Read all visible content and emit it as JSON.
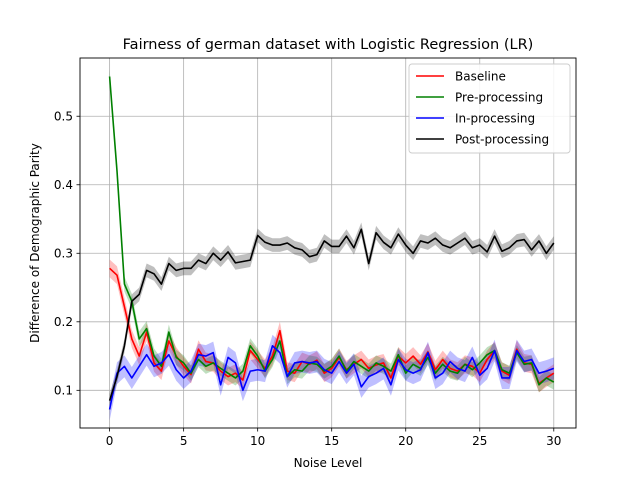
{
  "chart_data": {
    "type": "line",
    "title": "Fairness of german dataset with Logistic Regression (LR)",
    "xlabel": "Noise Level",
    "ylabel": "Difference of Demographic Parity",
    "xlim": [
      -2.0,
      31.5
    ],
    "ylim": [
      0.045,
      0.585
    ],
    "xticks": [
      0,
      5,
      10,
      15,
      20,
      25,
      30
    ],
    "yticks": [
      0.1,
      0.2,
      0.3,
      0.4,
      0.5
    ],
    "xtick_labels": [
      "0",
      "5",
      "10",
      "15",
      "20",
      "25",
      "30"
    ],
    "ytick_labels": [
      "0.1",
      "0.2",
      "0.3",
      "0.4",
      "0.5"
    ],
    "grid": true,
    "legend_position": "top-right",
    "x": [
      0,
      0.5,
      1,
      1.5,
      2,
      2.5,
      3,
      3.5,
      4,
      4.5,
      5,
      5.5,
      6,
      6.5,
      7,
      7.5,
      8,
      8.5,
      9,
      9.5,
      10,
      10.5,
      11,
      11.5,
      12,
      12.5,
      13,
      13.5,
      14,
      14.5,
      15,
      15.5,
      16,
      16.5,
      17,
      17.5,
      18,
      18.5,
      19,
      19.5,
      20,
      20.5,
      21,
      21.5,
      22,
      22.5,
      23,
      23.5,
      24,
      24.5,
      25,
      25.5,
      26,
      26.5,
      27,
      27.5,
      28,
      28.5,
      29,
      29.5,
      30
    ],
    "series": [
      {
        "name": "Baseline",
        "color": "#ff0000",
        "band": 0.013,
        "values": [
          0.278,
          0.268,
          0.222,
          0.175,
          0.15,
          0.185,
          0.14,
          0.128,
          0.172,
          0.15,
          0.135,
          0.123,
          0.16,
          0.142,
          0.14,
          0.128,
          0.12,
          0.125,
          0.115,
          0.158,
          0.145,
          0.132,
          0.15,
          0.187,
          0.128,
          0.125,
          0.142,
          0.138,
          0.144,
          0.125,
          0.132,
          0.148,
          0.13,
          0.138,
          0.145,
          0.132,
          0.137,
          0.14,
          0.118,
          0.15,
          0.14,
          0.15,
          0.138,
          0.156,
          0.13,
          0.145,
          0.132,
          0.128,
          0.138,
          0.135,
          0.125,
          0.145,
          0.158,
          0.128,
          0.122,
          0.16,
          0.14,
          0.138,
          0.11,
          0.118,
          0.125
        ]
      },
      {
        "name": "Pre-processing",
        "color": "#008000",
        "band": 0.011,
        "values": [
          0.558,
          0.42,
          0.255,
          0.23,
          0.175,
          0.19,
          0.15,
          0.135,
          0.185,
          0.148,
          0.14,
          0.125,
          0.145,
          0.135,
          0.14,
          0.132,
          0.125,
          0.118,
          0.128,
          0.165,
          0.15,
          0.128,
          0.145,
          0.172,
          0.12,
          0.13,
          0.128,
          0.14,
          0.138,
          0.128,
          0.135,
          0.15,
          0.128,
          0.142,
          0.135,
          0.128,
          0.14,
          0.135,
          0.128,
          0.152,
          0.125,
          0.138,
          0.132,
          0.148,
          0.125,
          0.138,
          0.128,
          0.125,
          0.138,
          0.13,
          0.14,
          0.152,
          0.158,
          0.13,
          0.125,
          0.155,
          0.138,
          0.14,
          0.108,
          0.118,
          0.112
        ]
      },
      {
        "name": "In-processing",
        "color": "#0000ff",
        "band": 0.016,
        "values": [
          0.072,
          0.125,
          0.135,
          0.118,
          0.135,
          0.152,
          0.135,
          0.14,
          0.152,
          0.13,
          0.118,
          0.128,
          0.152,
          0.15,
          0.155,
          0.108,
          0.148,
          0.14,
          0.1,
          0.128,
          0.13,
          0.128,
          0.165,
          0.155,
          0.12,
          0.14,
          0.142,
          0.14,
          0.142,
          0.13,
          0.125,
          0.142,
          0.125,
          0.138,
          0.105,
          0.12,
          0.125,
          0.132,
          0.108,
          0.145,
          0.13,
          0.125,
          0.13,
          0.155,
          0.118,
          0.125,
          0.142,
          0.132,
          0.128,
          0.148,
          0.122,
          0.132,
          0.158,
          0.118,
          0.118,
          0.158,
          0.142,
          0.145,
          0.125,
          0.128,
          0.132
        ]
      },
      {
        "name": "Post-processing",
        "color": "#000000",
        "band": 0.01,
        "values": [
          0.085,
          0.12,
          0.165,
          0.23,
          0.24,
          0.275,
          0.27,
          0.255,
          0.285,
          0.275,
          0.278,
          0.278,
          0.29,
          0.285,
          0.3,
          0.29,
          0.302,
          0.286,
          0.288,
          0.29,
          0.326,
          0.316,
          0.312,
          0.312,
          0.315,
          0.308,
          0.305,
          0.295,
          0.298,
          0.318,
          0.31,
          0.31,
          0.325,
          0.308,
          0.335,
          0.285,
          0.33,
          0.316,
          0.308,
          0.328,
          0.312,
          0.3,
          0.318,
          0.315,
          0.322,
          0.312,
          0.308,
          0.315,
          0.322,
          0.308,
          0.312,
          0.302,
          0.325,
          0.303,
          0.308,
          0.318,
          0.32,
          0.305,
          0.318,
          0.3,
          0.315
        ]
      }
    ]
  }
}
